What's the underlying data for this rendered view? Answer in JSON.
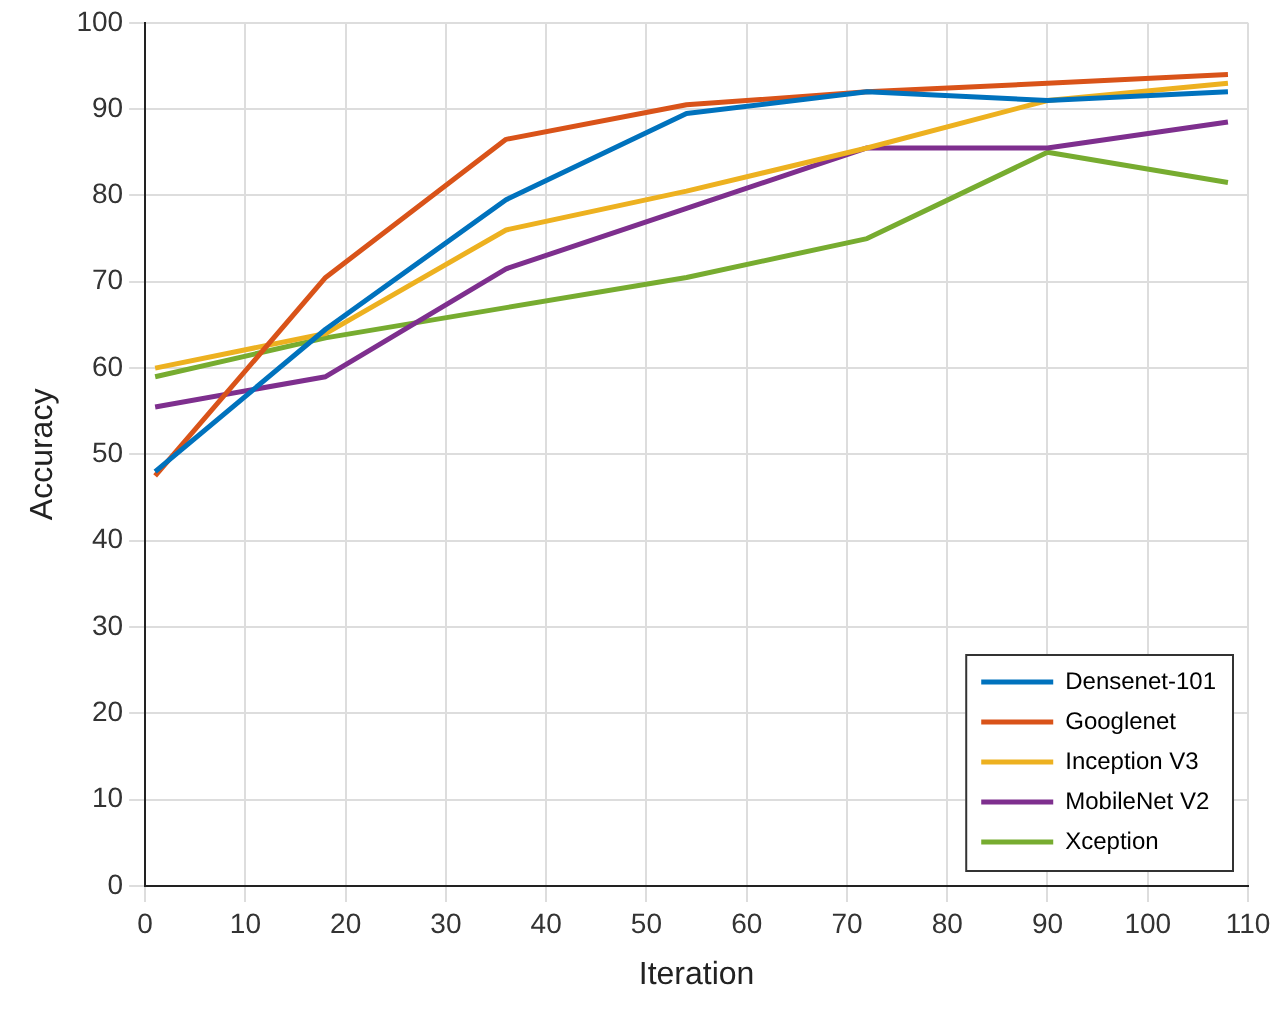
{
  "chart_data": {
    "type": "line",
    "xlabel": "Iteration",
    "ylabel": "Accuracy",
    "x": [
      1,
      18,
      36,
      54,
      72,
      90,
      108
    ],
    "series": [
      {
        "name": "Densenet-101",
        "color": "#0072bd",
        "values": [
          48,
          64.5,
          79.5,
          89.5,
          92,
          91,
          92
        ]
      },
      {
        "name": "Googlenet",
        "color": "#d95319",
        "values": [
          47.5,
          70.5,
          86.5,
          90.5,
          92,
          93,
          94
        ]
      },
      {
        "name": "Inception V3",
        "color": "#edb120",
        "values": [
          60,
          64,
          76,
          80.5,
          85.5,
          91,
          93
        ]
      },
      {
        "name": "MobileNet V2",
        "color": "#7e2f8e",
        "values": [
          55.5,
          59,
          71.5,
          78.5,
          85.5,
          85.5,
          88.5
        ]
      },
      {
        "name": "Xception",
        "color": "#77ac30",
        "values": [
          59,
          63.5,
          67,
          70.5,
          75,
          85,
          81.5
        ]
      }
    ],
    "xlim": [
      0,
      110
    ],
    "xticks": [
      0,
      10,
      20,
      30,
      40,
      50,
      60,
      70,
      80,
      90,
      100,
      110
    ],
    "ylim": [
      0,
      100
    ],
    "yticks": [
      0,
      10,
      20,
      30,
      40,
      50,
      60,
      70,
      80,
      90,
      100
    ],
    "grid": true,
    "legend": "bottom right",
    "marker": "none",
    "line_style": "solid"
  }
}
